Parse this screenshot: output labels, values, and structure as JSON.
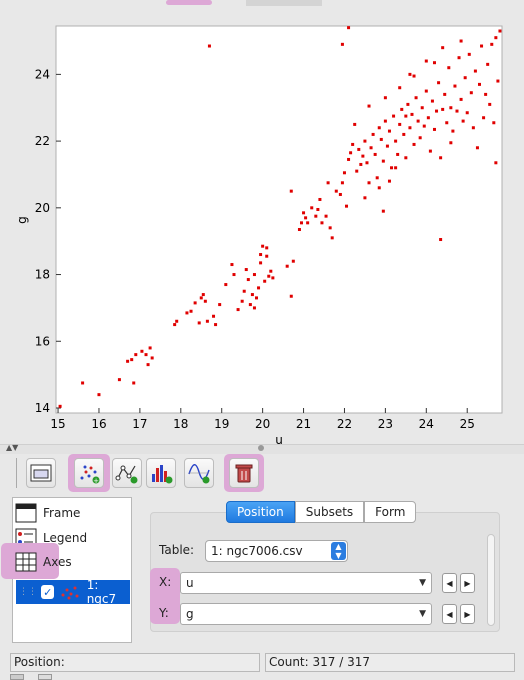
{
  "plot": {
    "xlabel": "u",
    "ylabel": "g",
    "xticks": [
      "15",
      "16",
      "17",
      "18",
      "19",
      "20",
      "21",
      "22",
      "23",
      "24",
      "25"
    ],
    "yticks": [
      "14",
      "16",
      "18",
      "20",
      "22",
      "24"
    ],
    "point_color": "#e00000"
  },
  "chart_data": {
    "type": "scatter",
    "title": "",
    "xlabel": "u",
    "ylabel": "g",
    "xlim": [
      14.95,
      25.85
    ],
    "ylim": [
      13.85,
      25.45
    ],
    "grid": false,
    "series": [
      {
        "name": "1: ngc7006.csv",
        "points": [
          [
            15.05,
            14.05
          ],
          [
            15.6,
            14.75
          ],
          [
            16.0,
            14.4
          ],
          [
            16.5,
            14.85
          ],
          [
            16.7,
            15.4
          ],
          [
            16.8,
            15.45
          ],
          [
            16.9,
            15.6
          ],
          [
            16.85,
            14.75
          ],
          [
            17.05,
            15.7
          ],
          [
            17.15,
            15.6
          ],
          [
            17.2,
            15.3
          ],
          [
            17.3,
            15.5
          ],
          [
            17.25,
            15.8
          ],
          [
            17.85,
            16.5
          ],
          [
            17.9,
            16.6
          ],
          [
            18.15,
            16.85
          ],
          [
            18.25,
            16.9
          ],
          [
            18.35,
            17.15
          ],
          [
            18.45,
            16.55
          ],
          [
            18.5,
            17.3
          ],
          [
            18.55,
            17.4
          ],
          [
            18.6,
            17.2
          ],
          [
            18.65,
            16.6
          ],
          [
            18.8,
            16.75
          ],
          [
            18.85,
            16.5
          ],
          [
            18.95,
            17.1
          ],
          [
            19.1,
            17.7
          ],
          [
            19.25,
            18.3
          ],
          [
            19.3,
            18.0
          ],
          [
            19.4,
            16.95
          ],
          [
            19.5,
            17.2
          ],
          [
            19.55,
            17.5
          ],
          [
            19.6,
            18.15
          ],
          [
            19.65,
            17.85
          ],
          [
            19.7,
            17.1
          ],
          [
            19.75,
            17.4
          ],
          [
            19.8,
            18.0
          ],
          [
            19.85,
            17.3
          ],
          [
            19.9,
            17.6
          ],
          [
            19.95,
            18.6
          ],
          [
            20.0,
            18.85
          ],
          [
            20.05,
            17.8
          ],
          [
            20.1,
            18.55
          ],
          [
            20.15,
            17.95
          ],
          [
            20.2,
            18.1
          ],
          [
            20.25,
            17.9
          ],
          [
            19.8,
            17.0
          ],
          [
            19.95,
            18.35
          ],
          [
            20.1,
            18.8
          ],
          [
            20.6,
            18.25
          ],
          [
            20.75,
            18.4
          ],
          [
            20.7,
            17.35
          ],
          [
            20.95,
            19.55
          ],
          [
            21.0,
            19.85
          ],
          [
            21.05,
            19.7
          ],
          [
            21.1,
            19.55
          ],
          [
            21.2,
            20.0
          ],
          [
            21.3,
            19.75
          ],
          [
            21.4,
            20.25
          ],
          [
            21.45,
            19.55
          ],
          [
            21.55,
            19.75
          ],
          [
            21.65,
            19.4
          ],
          [
            21.8,
            20.5
          ],
          [
            21.9,
            20.4
          ],
          [
            21.95,
            20.75
          ],
          [
            20.7,
            20.5
          ],
          [
            21.6,
            20.75
          ],
          [
            22.0,
            21.05
          ],
          [
            22.1,
            21.45
          ],
          [
            22.15,
            21.65
          ],
          [
            22.3,
            21.1
          ],
          [
            22.35,
            21.75
          ],
          [
            22.4,
            21.3
          ],
          [
            22.45,
            21.55
          ],
          [
            22.5,
            22.0
          ],
          [
            22.55,
            21.35
          ],
          [
            22.6,
            20.75
          ],
          [
            22.65,
            21.8
          ],
          [
            22.7,
            22.2
          ],
          [
            22.75,
            21.6
          ],
          [
            22.8,
            20.9
          ],
          [
            22.85,
            22.4
          ],
          [
            22.9,
            22.05
          ],
          [
            22.95,
            21.4
          ],
          [
            23.0,
            22.6
          ],
          [
            23.05,
            21.85
          ],
          [
            23.1,
            22.3
          ],
          [
            23.15,
            21.2
          ],
          [
            23.2,
            22.75
          ],
          [
            23.25,
            22.0
          ],
          [
            23.3,
            21.6
          ],
          [
            23.35,
            22.5
          ],
          [
            23.4,
            22.95
          ],
          [
            23.45,
            22.2
          ],
          [
            23.5,
            21.5
          ],
          [
            23.55,
            23.1
          ],
          [
            23.6,
            22.4
          ],
          [
            23.65,
            22.8
          ],
          [
            23.7,
            21.9
          ],
          [
            23.75,
            23.3
          ],
          [
            23.8,
            22.6
          ],
          [
            23.85,
            22.1
          ],
          [
            23.9,
            23.0
          ],
          [
            23.95,
            22.45
          ],
          [
            24.0,
            23.5
          ],
          [
            24.05,
            22.7
          ],
          [
            24.1,
            21.7
          ],
          [
            24.15,
            23.2
          ],
          [
            24.2,
            22.35
          ],
          [
            24.25,
            22.9
          ],
          [
            24.3,
            23.75
          ],
          [
            24.35,
            21.5
          ],
          [
            24.4,
            22.95
          ],
          [
            24.45,
            23.4
          ],
          [
            24.5,
            22.55
          ],
          [
            24.55,
            24.2
          ],
          [
            24.6,
            23.0
          ],
          [
            24.65,
            22.3
          ],
          [
            24.7,
            23.65
          ],
          [
            24.75,
            22.9
          ],
          [
            24.8,
            24.5
          ],
          [
            24.85,
            23.25
          ],
          [
            24.9,
            22.6
          ],
          [
            24.95,
            23.9
          ],
          [
            25.0,
            22.85
          ],
          [
            25.05,
            24.6
          ],
          [
            25.1,
            23.45
          ],
          [
            25.15,
            22.4
          ],
          [
            25.2,
            24.1
          ],
          [
            25.3,
            23.7
          ],
          [
            25.35,
            24.85
          ],
          [
            25.4,
            22.7
          ],
          [
            25.45,
            23.4
          ],
          [
            25.5,
            24.3
          ],
          [
            25.55,
            23.1
          ],
          [
            25.6,
            24.9
          ],
          [
            25.65,
            22.55
          ],
          [
            25.7,
            25.1
          ],
          [
            25.75,
            23.8
          ],
          [
            25.8,
            25.3
          ],
          [
            22.25,
            22.5
          ],
          [
            22.6,
            23.05
          ],
          [
            23.0,
            23.3
          ],
          [
            23.35,
            23.6
          ],
          [
            23.6,
            24.0
          ],
          [
            24.0,
            24.4
          ],
          [
            24.4,
            24.8
          ],
          [
            24.85,
            25.0
          ],
          [
            22.95,
            19.9
          ],
          [
            23.1,
            20.8
          ],
          [
            24.35,
            19.05
          ],
          [
            21.95,
            24.9
          ],
          [
            22.1,
            25.4
          ],
          [
            18.7,
            24.85
          ],
          [
            22.05,
            20.05
          ],
          [
            22.5,
            20.3
          ],
          [
            21.35,
            19.95
          ],
          [
            20.9,
            19.35
          ],
          [
            21.7,
            19.1
          ],
          [
            22.2,
            21.9
          ],
          [
            23.7,
            23.95
          ],
          [
            24.2,
            24.35
          ],
          [
            23.5,
            22.75
          ],
          [
            22.85,
            20.6
          ],
          [
            23.25,
            21.2
          ],
          [
            24.6,
            21.95
          ],
          [
            25.25,
            21.8
          ],
          [
            25.7,
            21.35
          ]
        ]
      }
    ]
  },
  "toolbar": {
    "buttons": [
      {
        "name": "frame-toggle-icon"
      },
      {
        "name": "add-scatter-layer-icon"
      },
      {
        "name": "add-line-layer-icon"
      },
      {
        "name": "add-histogram-layer-icon"
      },
      {
        "name": "add-function-layer-icon"
      },
      {
        "name": "delete-layer-icon"
      }
    ]
  },
  "layers": {
    "frame": "Frame",
    "legend": "Legend",
    "axes": "Axes",
    "table_layer": "1: ngc7"
  },
  "panel": {
    "tabs": [
      "Position",
      "Subsets",
      "Form"
    ],
    "table_label": "Table:",
    "table_value": "1: ngc7006.csv",
    "x_label": "X:",
    "x_value": "u",
    "y_label": "Y:",
    "y_value": "g"
  },
  "status": {
    "position": "Position:",
    "count": "Count: 317 / 317"
  }
}
